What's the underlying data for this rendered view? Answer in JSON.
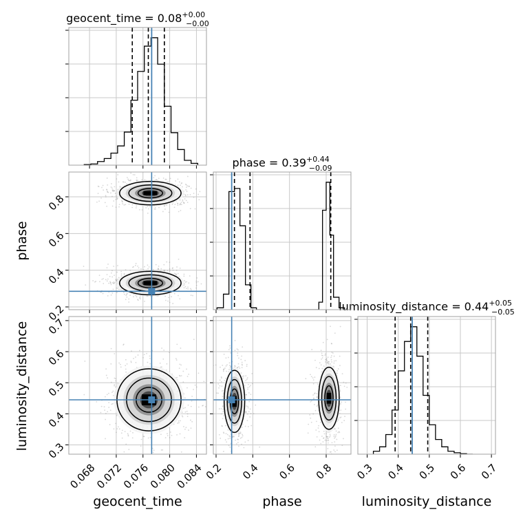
{
  "colors": {
    "truth": "#4682b4",
    "hist": "#000000",
    "quantile": "#000000",
    "grid": "#c8c8c8",
    "samples": "#8c8c8c"
  },
  "chart_data": {
    "type": "corner",
    "parameters": [
      "geocent_time",
      "phase",
      "luminosity_distance"
    ],
    "titles": [
      {
        "main": "geocent_time = 0.08",
        "sup": "+0.00",
        "sub": "−0.00"
      },
      {
        "main": "phase = 0.39",
        "sup": "+0.44",
        "sub": "−0.09"
      },
      {
        "main": "luminosity_distance = 0.44",
        "sup": "+0.05",
        "sub": "−0.05"
      }
    ],
    "axis_labels": [
      "geocent_time",
      "phase",
      "luminosity_distance"
    ],
    "ranges": [
      [
        0.0649,
        0.0855
      ],
      [
        0.185,
        0.935
      ],
      [
        0.27,
        0.713
      ]
    ],
    "ticks": [
      {
        "values": [
          0.068,
          0.072,
          0.076,
          0.08,
          0.084
        ],
        "labels": [
          "0.068",
          "0.072",
          "0.076",
          "0.080",
          "0.084"
        ]
      },
      {
        "values": [
          0.2,
          0.4,
          0.6,
          0.8
        ],
        "labels": [
          "0.2",
          "0.4",
          "0.6",
          "0.8"
        ]
      },
      {
        "values": [
          0.3,
          0.4,
          0.5,
          0.6,
          0.7
        ],
        "labels": [
          "0.3",
          "0.4",
          "0.5",
          "0.6",
          "0.7"
        ]
      }
    ],
    "truths": [
      0.0773,
      0.285,
      0.445
    ],
    "quantiles": [
      [
        0.0744,
        0.0768,
        0.0792
      ],
      [
        0.3,
        0.385,
        0.825
      ],
      [
        0.39,
        0.44,
        0.495
      ]
    ],
    "histograms": [
      {
        "bin_edges": [
          0.0672,
          0.0682,
          0.0692,
          0.0702,
          0.0712,
          0.0722,
          0.0732,
          0.0742,
          0.0752,
          0.0762,
          0.0772,
          0.0782,
          0.0792,
          0.0802,
          0.0812,
          0.0822,
          0.0832,
          0.0842
        ],
        "counts": [
          1,
          2,
          6,
          11,
          20,
          32,
          55,
          108,
          156,
          198,
          212,
          168,
          98,
          54,
          26,
          8,
          3
        ]
      },
      {
        "bin_edges": [
          0.205,
          0.24,
          0.27,
          0.3,
          0.33,
          0.36,
          0.39,
          0.42,
          0.76,
          0.78,
          0.8,
          0.82,
          0.84,
          0.87,
          0.9
        ],
        "counts": [
          3,
          25,
          190,
          195,
          135,
          40,
          3,
          0,
          12,
          160,
          205,
          120,
          20,
          3
        ]
      },
      {
        "bin_edges": [
          0.32,
          0.34,
          0.36,
          0.38,
          0.4,
          0.42,
          0.44,
          0.46,
          0.48,
          0.5,
          0.52,
          0.54,
          0.56,
          0.58,
          0.6,
          0.62,
          0.64
        ],
        "counts": [
          6,
          15,
          40,
          90,
          170,
          230,
          260,
          200,
          120,
          60,
          30,
          15,
          6,
          3,
          1,
          0
        ]
      }
    ],
    "density_blobs": [
      {
        "panel": [
          1,
          0
        ],
        "cx": 0.0771,
        "cy": 0.82,
        "sx": 0.0023,
        "sy": 0.032
      },
      {
        "panel": [
          1,
          0
        ],
        "cx": 0.0771,
        "cy": 0.33,
        "sx": 0.0023,
        "sy": 0.032
      },
      {
        "panel": [
          2,
          0
        ],
        "cx": 0.0769,
        "cy": 0.445,
        "sx": 0.0024,
        "sy": 0.05
      },
      {
        "panel": [
          2,
          1
        ],
        "cx": 0.3,
        "cy": 0.44,
        "sx": 0.028,
        "sy": 0.05
      },
      {
        "panel": [
          2,
          1
        ],
        "cx": 0.815,
        "cy": 0.45,
        "sx": 0.028,
        "sy": 0.05
      }
    ]
  }
}
